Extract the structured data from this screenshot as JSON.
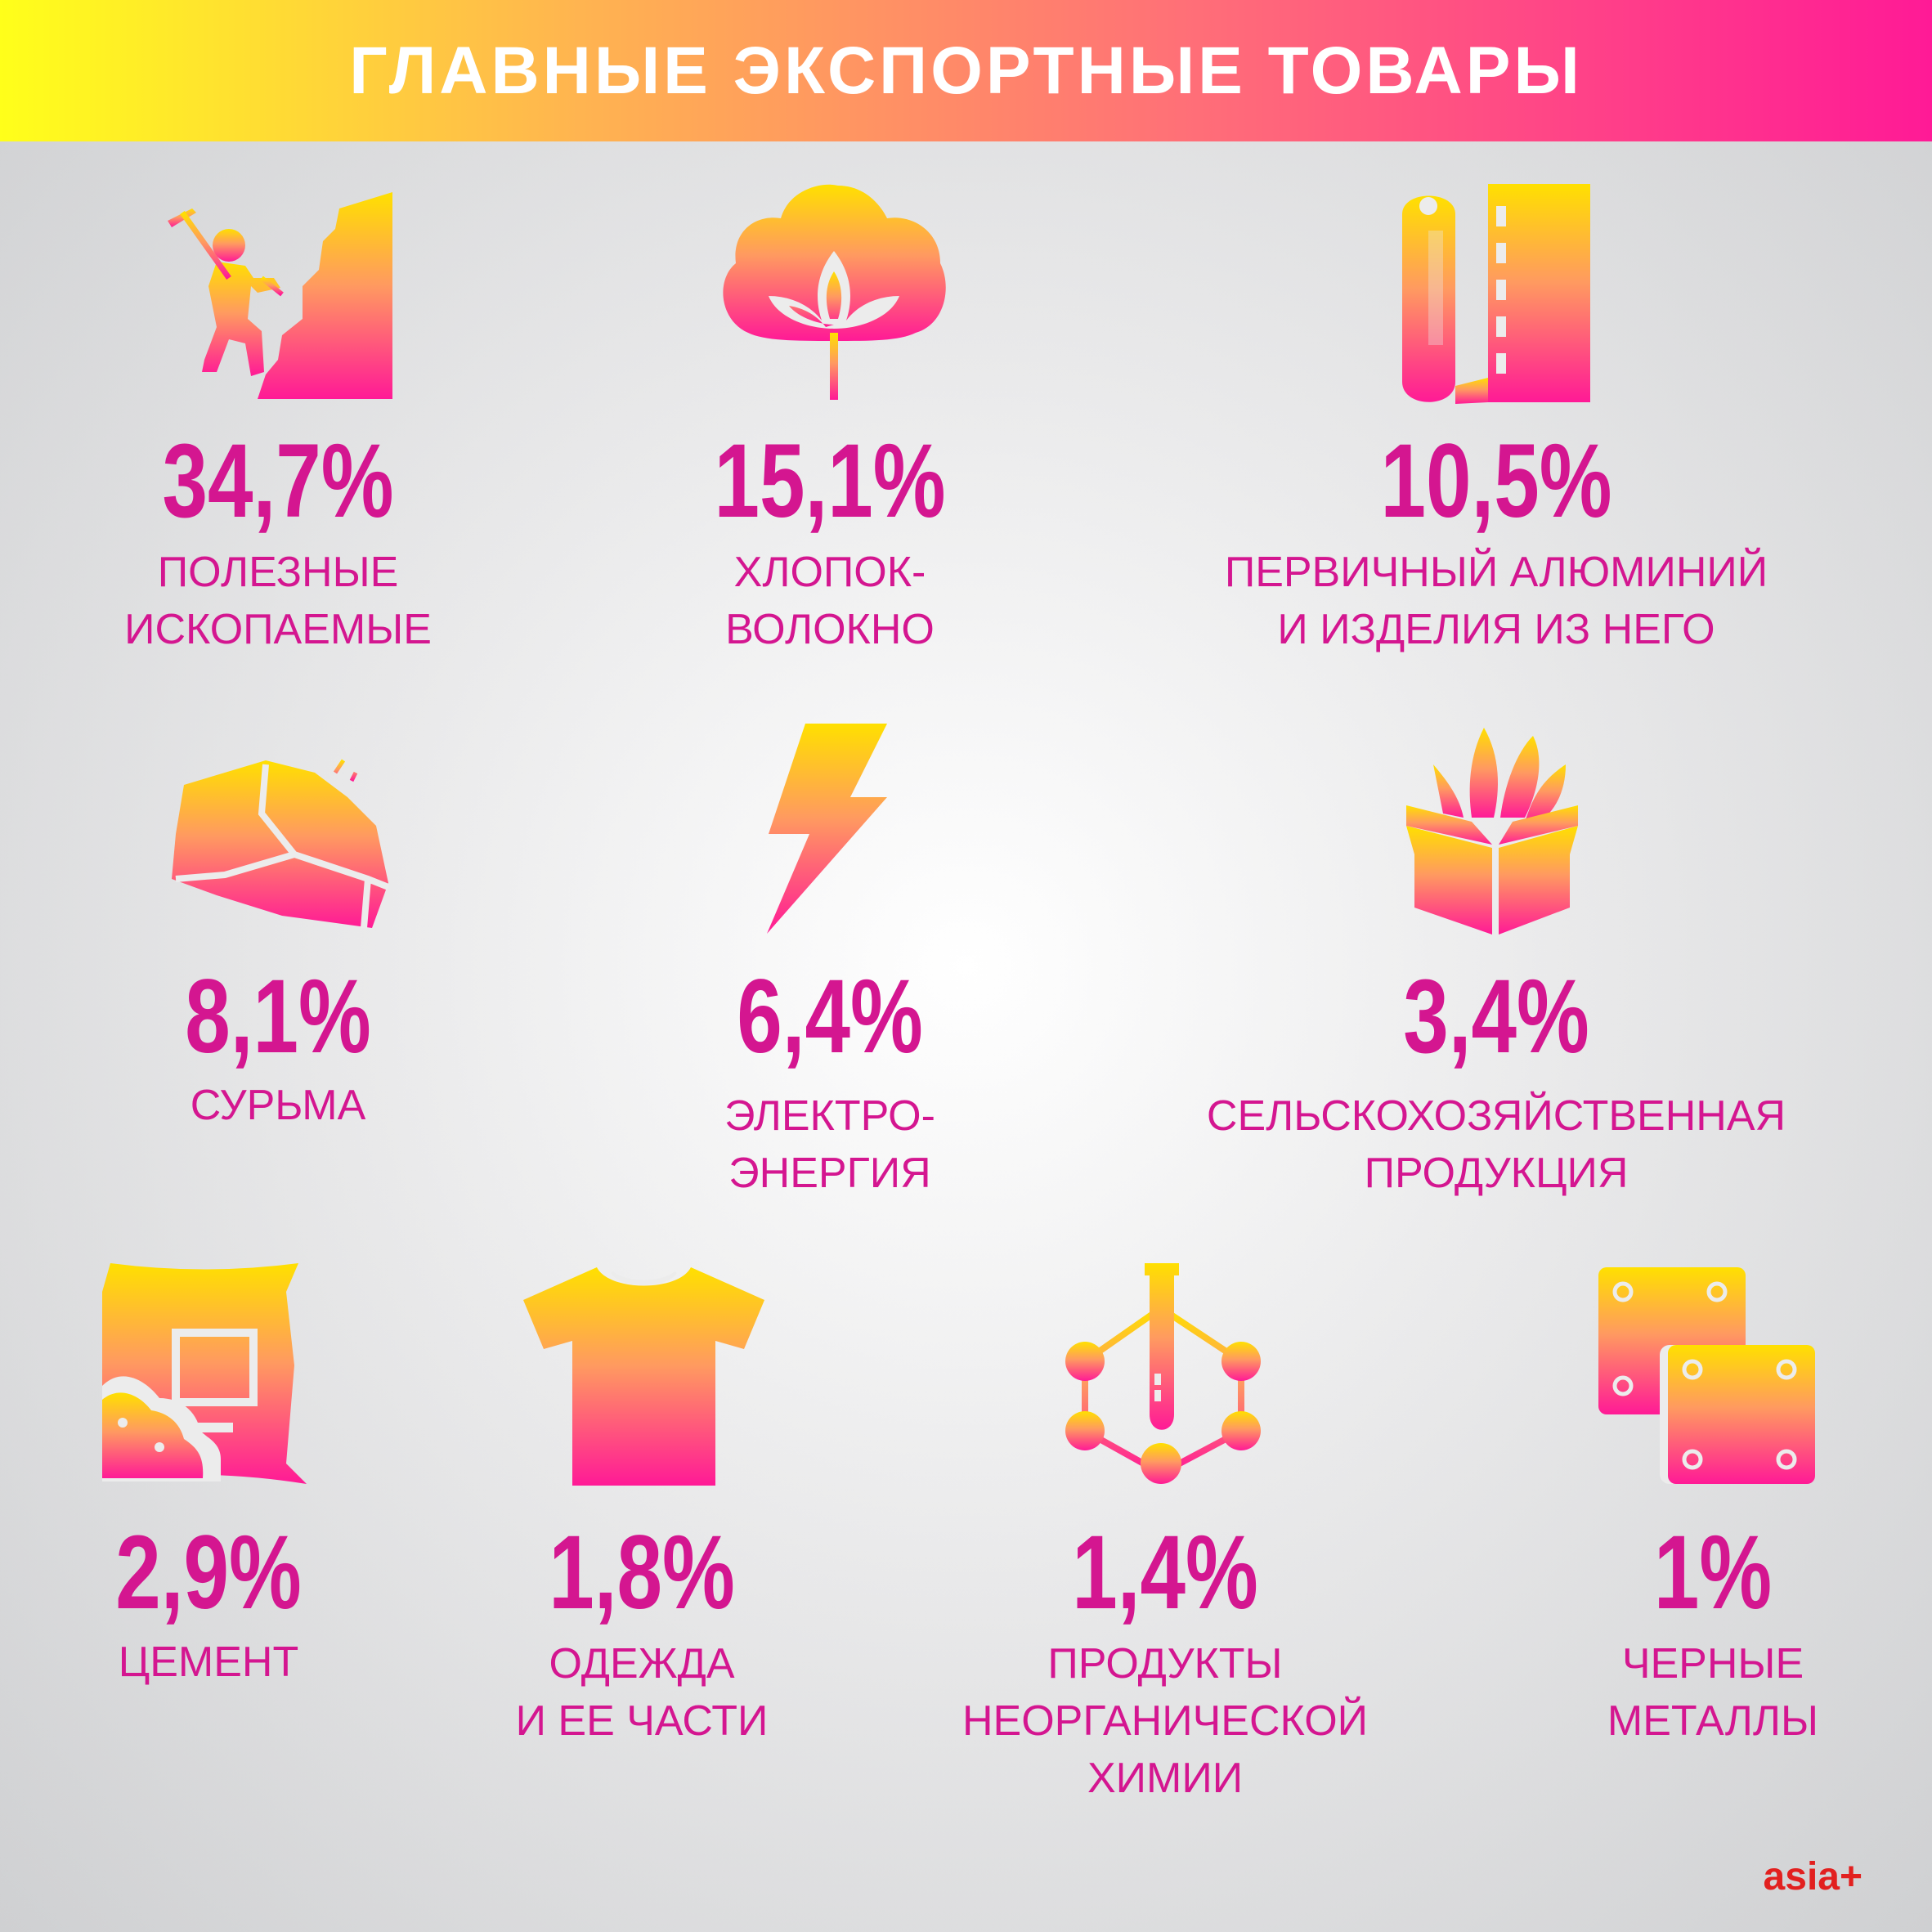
{
  "title": "ГЛАВНЫЕ ЭКСПОРТНЫЕ ТОВАРЫ",
  "colors": {
    "accent": "#d41690",
    "gradient_top": "#ffe000",
    "gradient_bottom": "#ff1a96",
    "logo": "#e2201f"
  },
  "items": [
    {
      "icon": "miner-icon",
      "percent": "34,7%",
      "label": "ПОЛЕЗНЫЕ\nИСКОПАЕМЫЕ"
    },
    {
      "icon": "cotton-icon",
      "percent": "15,1%",
      "label": "ХЛОПОК-\nВОЛОКНО"
    },
    {
      "icon": "aluminium-roll-icon",
      "percent": "10,5%",
      "label": "ПЕРВИЧНЫЙ АЛЮМИНИЙ\nИ ИЗДЕЛИЯ ИЗ НЕГО"
    },
    {
      "icon": "ore-rock-icon",
      "percent": "8,1%",
      "label": "СУРЬМА"
    },
    {
      "icon": "lightning-icon",
      "percent": "6,4%",
      "label": "ЭЛЕКТРО-\nЭНЕРГИЯ"
    },
    {
      "icon": "crops-box-icon",
      "percent": "3,4%",
      "label": "СЕЛЬСКОХОЗЯЙСТВЕННАЯ\nПРОДУКЦИЯ"
    },
    {
      "icon": "cement-bag-icon",
      "percent": "2,9%",
      "label": "ЦЕМЕНТ"
    },
    {
      "icon": "tshirt-icon",
      "percent": "1,8%",
      "label": "ОДЕЖДА\nИ ЕЕ ЧАСТИ"
    },
    {
      "icon": "test-tube-molecule-icon",
      "percent": "1,4%",
      "label": "ПРОДУКТЫ\nНЕОРГАНИЧЕСКОЙ\nХИМИИ"
    },
    {
      "icon": "metal-plates-icon",
      "percent": "1%",
      "label": "ЧЕРНЫЕ\nМЕТАЛЛЫ"
    }
  ],
  "logo": "asia+"
}
